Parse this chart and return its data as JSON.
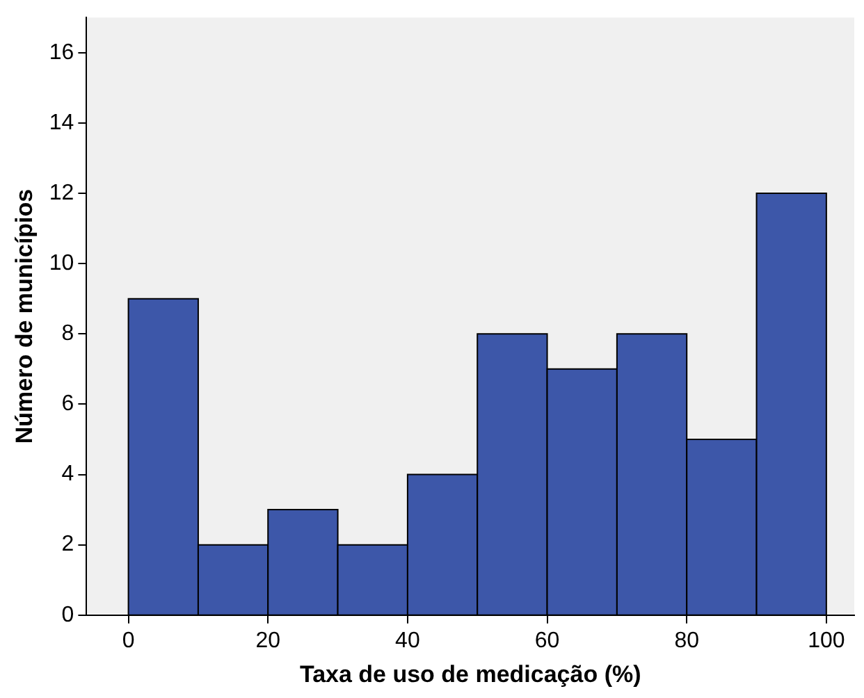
{
  "chart_data": {
    "type": "histogram",
    "xlabel": "Taxa de uso de medicação (%)",
    "ylabel": "Número de municípios",
    "bins": [
      0,
      10,
      20,
      30,
      40,
      50,
      60,
      70,
      80,
      90,
      100
    ],
    "values": [
      9,
      2,
      3,
      2,
      4,
      8,
      7,
      8,
      5,
      12
    ],
    "color": "#3d57a9",
    "xlim": [
      -6,
      104
    ],
    "xticks": [
      0,
      20,
      40,
      60,
      80,
      100
    ],
    "ylim": [
      0,
      17
    ],
    "yticks": [
      0,
      2,
      4,
      6,
      8,
      10,
      12,
      14,
      16
    ],
    "grid": false,
    "legend": false
  }
}
